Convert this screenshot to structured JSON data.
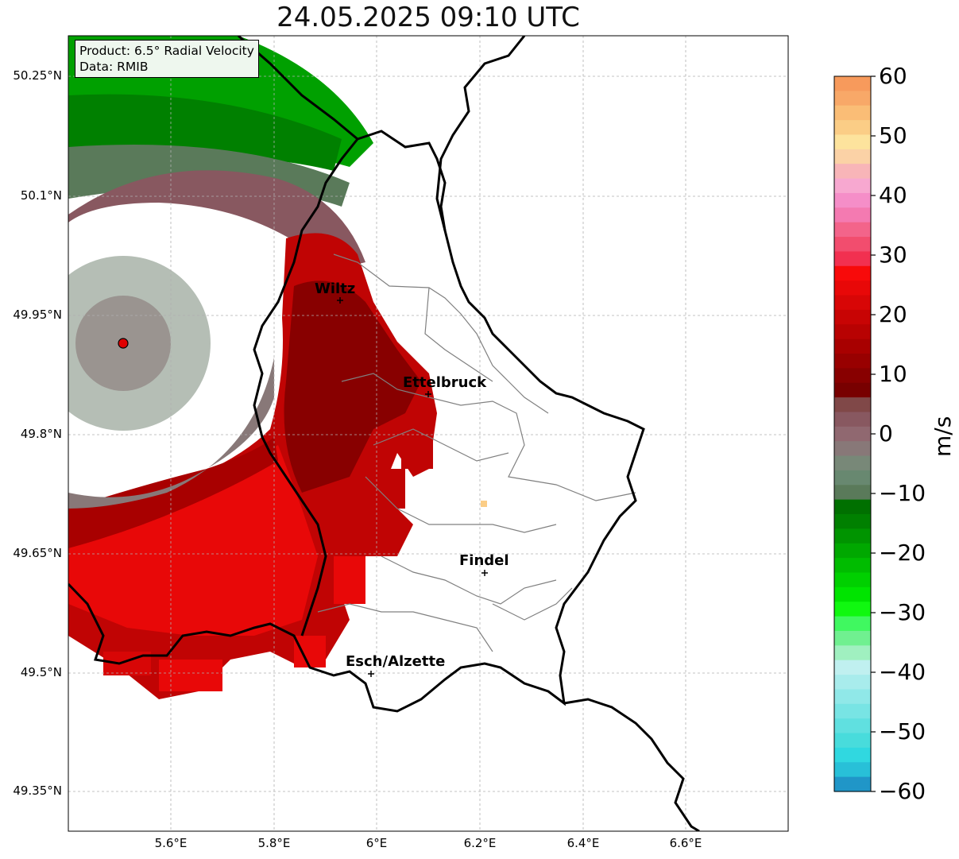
{
  "title": "24.05.2025 09:10 UTC",
  "info": {
    "product": "Product: 6.5° Radial Velocity",
    "data": "Data: RMIB"
  },
  "axes": {
    "lat_ticks": [
      "50.25°N",
      "50.1°N",
      "49.95°N",
      "49.8°N",
      "49.65°N",
      "49.5°N",
      "49.35°N"
    ],
    "lon_ticks": [
      "5.6°E",
      "5.8°E",
      "6°E",
      "6.2°E",
      "6.4°E",
      "6.6°E"
    ]
  },
  "cities": [
    {
      "name": "Wiltz"
    },
    {
      "name": "Ettelbruck"
    },
    {
      "name": "Findel"
    },
    {
      "name": "Esch/Alzette"
    }
  ],
  "colorbar": {
    "unit": "m/s",
    "tick_labels": [
      "60",
      "50",
      "40",
      "30",
      "20",
      "10",
      "0",
      "−10",
      "−20",
      "−30",
      "−40",
      "−50",
      "−60"
    ],
    "min": -60,
    "max": 60,
    "colors_top_to_bottom": [
      "#f79a5c",
      "#f8a868",
      "#fabd76",
      "#fbcd86",
      "#fde39d",
      "#fbd2a6",
      "#f8b5b8",
      "#f7a8d0",
      "#f58ec8",
      "#f47ab1",
      "#f3648a",
      "#f24d6e",
      "#f23050",
      "#f80a0a",
      "#e80808",
      "#d80606",
      "#c80404",
      "#b80202",
      "#a80000",
      "#980000",
      "#880000",
      "#780000",
      "#804848",
      "#885860",
      "#906870",
      "#887878",
      "#788878",
      "#688870",
      "#5a7a5a",
      "#007000",
      "#008000",
      "#009400",
      "#00a800",
      "#00bc00",
      "#00d000",
      "#00e400",
      "#10f810",
      "#40f860",
      "#70f090",
      "#a0f0c0",
      "#c0f0f0",
      "#a8ecec",
      "#90e8e8",
      "#78e4e4",
      "#60e0e0",
      "#48dcdc",
      "#30d8e0",
      "#28c0d8",
      "#2096c8"
    ]
  }
}
